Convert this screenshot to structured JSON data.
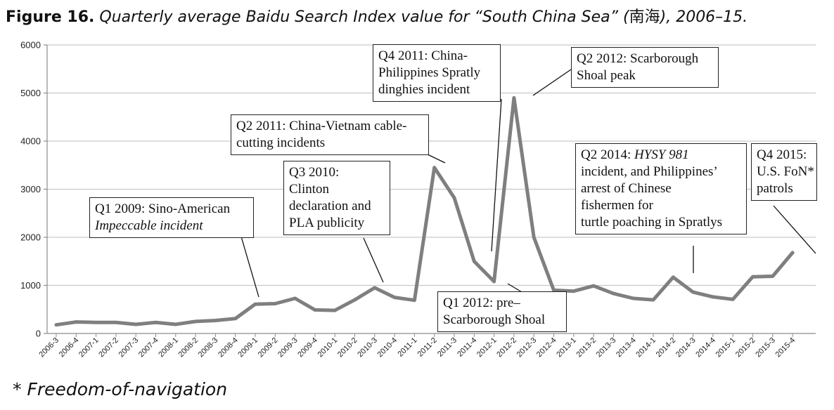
{
  "figure": {
    "label": "Figure 16.",
    "title_pre": "Quarterly average Baidu Search Index value for “South China Sea” (",
    "title_cjk": "南海",
    "title_post": "), 2006–15."
  },
  "footnote": {
    "star": "* ",
    "text": "Freedom-of-navigation"
  },
  "chart_data": {
    "type": "line",
    "categories": [
      "2006-3",
      "2006-4",
      "2007-1",
      "2007-2",
      "2007-3",
      "2007-4",
      "2008-1",
      "2008-2",
      "2008-3",
      "2008-4",
      "2009-1",
      "2009-2",
      "2009-3",
      "2009-4",
      "2010-1",
      "2010-2",
      "2010-3",
      "2010-4",
      "2011-1",
      "2011-2",
      "2011-3",
      "2011-4",
      "2012-1",
      "2012-2",
      "2012-3",
      "2012-4",
      "2013-1",
      "2013-2",
      "2013-3",
      "2013-4",
      "2014-1",
      "2014-2",
      "2014-3",
      "2014-4",
      "2015-1",
      "2015-2",
      "2015-3",
      "2015-4"
    ],
    "series": [
      {
        "values": [
          180,
          240,
          230,
          230,
          190,
          230,
          190,
          250,
          270,
          310,
          610,
          620,
          730,
          490,
          480,
          700,
          950,
          750,
          690,
          3450,
          2820,
          1500,
          1080,
          4900,
          2000,
          900,
          880,
          990,
          830,
          730,
          700,
          1170,
          860,
          760,
          710,
          1180,
          1190,
          1680
        ]
      }
    ],
    "ylim": [
      0,
      6000
    ],
    "yticks": [
      0,
      1000,
      2000,
      3000,
      4000,
      5000,
      6000
    ],
    "grid": true,
    "line_color": "#7f7f7f",
    "annotations": [
      {
        "lines": [
          "Q1 2009: Sino-American",
          "Impeccable incident"
        ]
      },
      {
        "lines": [
          "Q3 2010:",
          "Clinton",
          "declaration and",
          "PLA publicity"
        ]
      },
      {
        "lines": [
          "Q2 2011: China-Vietnam cable-",
          "cutting incidents"
        ]
      },
      {
        "lines": [
          "Q4 2011: China-",
          "Philippines Spratly",
          "dinghies incident"
        ]
      },
      {
        "lines": [
          "Q2 2012: Scarborough",
          "Shoal peak"
        ]
      },
      {
        "lines": [
          "Q1 2012: pre–",
          "Scarborough Shoal"
        ]
      },
      {
        "lines": [
          "Q2 2014: HYSY 981",
          "incident, and Philippines’",
          "arrest of Chinese",
          "fishermen for",
          "turtle poaching in Spratlys"
        ]
      },
      {
        "lines": [
          "Q4 2015:",
          "U.S. FoN*",
          "patrols"
        ]
      }
    ]
  }
}
